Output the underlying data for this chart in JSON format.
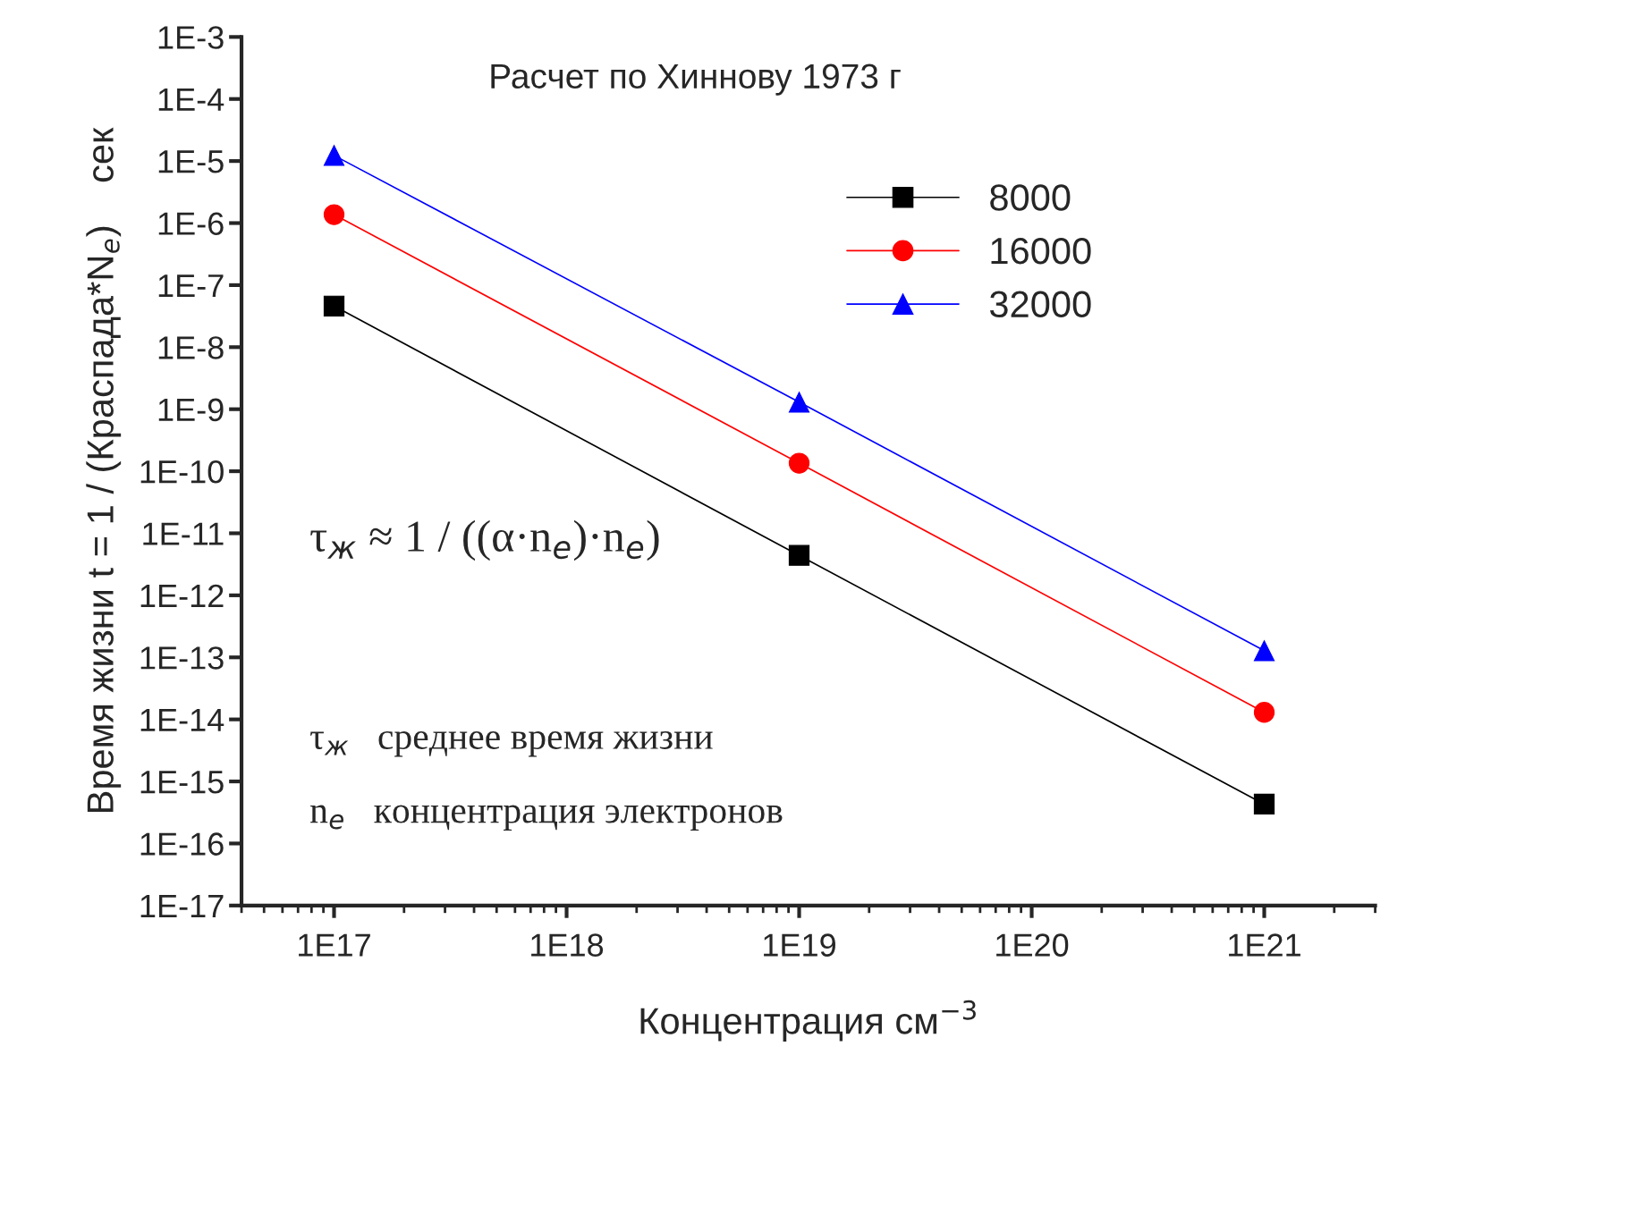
{
  "chart_data": {
    "type": "line",
    "title": "Расчет по Хиннову 1973 г",
    "xlabel": "Концентрация см$^{−3}$",
    "ylabel": "Время жизни t = 1 / (Краспада*N$_{e}$)    сек",
    "x": [
      1e+17,
      1e+19,
      1e+21
    ],
    "series": [
      {
        "name": "8000",
        "color": "#000000",
        "marker": "square",
        "values": [
          4.6e-08,
          4.4e-12,
          4.3e-16
        ]
      },
      {
        "name": "16000",
        "color": "#ff0000",
        "marker": "circle",
        "values": [
          1.37e-06,
          1.35e-10,
          1.3e-14
        ]
      },
      {
        "name": "32000",
        "color": "#0000ff",
        "marker": "triangle",
        "values": [
          1.23e-05,
          1.3e-09,
          1.28e-13
        ]
      }
    ],
    "log": "xy",
    "xlim": [
      4e+16,
      3e+21
    ],
    "xticks": [
      {
        "value": 1e+17,
        "label": "1E17"
      },
      {
        "value": 1e+18,
        "label": "1E18"
      },
      {
        "value": 1e+19,
        "label": "1E19"
      },
      {
        "value": 1e+20,
        "label": "1E20"
      },
      {
        "value": 1e+21,
        "label": "1E21"
      }
    ],
    "ylim": [
      1e-17,
      0.001
    ],
    "yticks": [
      {
        "value": 1e-17,
        "label": "1E-17"
      },
      {
        "value": 1e-16,
        "label": "1E-16"
      },
      {
        "value": 1e-15,
        "label": "1E-15"
      },
      {
        "value": 1e-14,
        "label": "1E-14"
      },
      {
        "value": 1e-13,
        "label": "1E-13"
      },
      {
        "value": 1e-12,
        "label": "1E-12"
      },
      {
        "value": 1e-11,
        "label": "1E-11"
      },
      {
        "value": 1e-10,
        "label": "1E-10"
      },
      {
        "value": 1e-09,
        "label": "1E-9"
      },
      {
        "value": 1e-08,
        "label": "1E-8"
      },
      {
        "value": 1e-07,
        "label": "1E-7"
      },
      {
        "value": 1e-06,
        "label": "1E-6"
      },
      {
        "value": 1e-05,
        "label": "1E-5"
      },
      {
        "value": 0.0001,
        "label": "1E-4"
      },
      {
        "value": 0.001,
        "label": "1E-3"
      }
    ],
    "annotations": [
      "τ$_{ж}$ ≈ 1 / ((α·n$_{e}$)·n$_{e}$)",
      "τ$_{ж}$   среднее время жизни",
      "n$_{e}$   концентрация электронов"
    ],
    "legend": "top right",
    "grid": false,
    "line_style": "solid"
  }
}
